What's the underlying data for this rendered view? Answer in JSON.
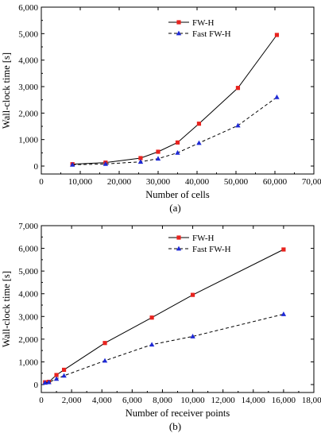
{
  "chart_data": [
    {
      "type": "line",
      "panel_label": "(a)",
      "title": "",
      "xlabel": "Number of cells",
      "ylabel": "Wall-clock time [s]",
      "xlim": [
        0,
        70000
      ],
      "ylim": [
        -300,
        6000
      ],
      "x_ticks": [
        0,
        10000,
        20000,
        30000,
        40000,
        50000,
        60000,
        70000
      ],
      "x_tick_labels": [
        "0",
        "10,000",
        "20,000",
        "30,000",
        "40,000",
        "50,000",
        "60,000",
        "70,000"
      ],
      "y_ticks": [
        0,
        1000,
        2000,
        3000,
        4000,
        5000,
        6000
      ],
      "y_tick_labels": [
        "0",
        "1,000",
        "2,000",
        "3,000",
        "4,000",
        "5,000",
        "6,000"
      ],
      "grid": false,
      "legend_position": "top-center",
      "series": [
        {
          "name": "FW-H",
          "color": "#000000",
          "marker_color": "#e8231e",
          "marker": "square",
          "line_style": "solid",
          "x": [
            8000,
            16500,
            25500,
            30000,
            35000,
            40500,
            50500,
            60500
          ],
          "y": [
            70,
            130,
            300,
            540,
            890,
            1600,
            2950,
            4950
          ]
        },
        {
          "name": "Fast FW-H",
          "color": "#000000",
          "marker_color": "#1f2ad6",
          "marker": "triangle",
          "line_style": "dashed",
          "x": [
            8000,
            16500,
            25500,
            30000,
            35000,
            40500,
            50500,
            60500
          ],
          "y": [
            50,
            80,
            160,
            280,
            500,
            870,
            1530,
            2600
          ]
        }
      ]
    },
    {
      "type": "line",
      "panel_label": "(b)",
      "title": "",
      "xlabel": "Number of receiver points",
      "ylabel": "Wall-clock time [s]",
      "xlim": [
        0,
        18000
      ],
      "ylim": [
        -350,
        7000
      ],
      "x_ticks": [
        0,
        2000,
        4000,
        6000,
        8000,
        10000,
        12000,
        14000,
        16000,
        18000
      ],
      "x_tick_labels": [
        "0",
        "2,000",
        "4,000",
        "6,000",
        "8,000",
        "10,000",
        "12,000",
        "14,000",
        "16,000",
        "18,000"
      ],
      "y_ticks": [
        0,
        1000,
        2000,
        3000,
        4000,
        5000,
        6000,
        7000
      ],
      "y_tick_labels": [
        "0",
        "1,000",
        "2,000",
        "3,000",
        "4,000",
        "5,000",
        "6,000",
        "7,000"
      ],
      "grid": false,
      "legend_position": "top-center",
      "series": [
        {
          "name": "FW-H",
          "color": "#000000",
          "marker_color": "#e8231e",
          "marker": "square",
          "line_style": "solid",
          "x": [
            250,
            500,
            1000,
            1500,
            4200,
            7300,
            10000,
            16000
          ],
          "y": [
            100,
            120,
            420,
            650,
            1830,
            2950,
            3950,
            5950
          ]
        },
        {
          "name": "Fast FW-H",
          "color": "#000000",
          "marker_color": "#1f2ad6",
          "marker": "triangle",
          "line_style": "dashed",
          "x": [
            250,
            500,
            1000,
            1500,
            4200,
            7300,
            10000,
            16000
          ],
          "y": [
            80,
            100,
            250,
            390,
            1050,
            1760,
            2120,
            3100
          ]
        }
      ]
    }
  ]
}
